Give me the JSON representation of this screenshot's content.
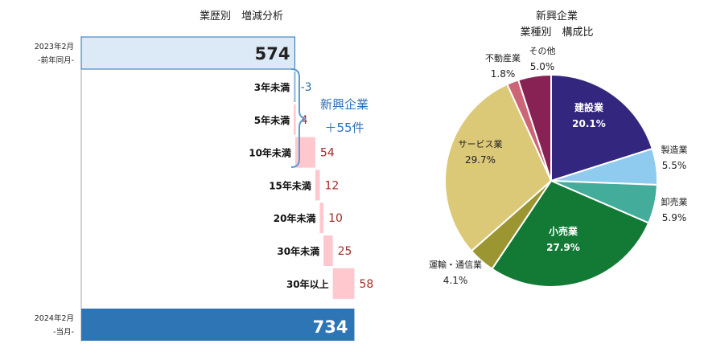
{
  "chart_data": [
    {
      "type": "bar",
      "title": "業歴別　増減分析",
      "start": {
        "value": 574,
        "label_line1": "2023年2月",
        "label_line2": "-前年同月-",
        "value_text": "574"
      },
      "categories": [
        "3年未満",
        "5年未満",
        "10年未満",
        "15年未満",
        "20年未満",
        "30年未満",
        "30年以上"
      ],
      "values": [
        -3,
        4,
        54,
        12,
        10,
        25,
        58
      ],
      "value_labels": [
        "-3",
        "4",
        "54",
        "12",
        "10",
        "25",
        "58"
      ],
      "end": {
        "value": 734,
        "label_line1": "2024年2月",
        "label_line2": "-当月-",
        "value_text": "734"
      },
      "annotation": {
        "line1": "新興企業",
        "line2": "＋55件"
      },
      "colors": {
        "start": "#dce9f6",
        "start_border": "#2e6eb5",
        "neg": "#9dc3e6",
        "pos": "#ffc7ce",
        "end": "#2e75b6",
        "neg_text": "#2e6eb5",
        "pos_text": "#a52a2a",
        "brace": "#5b9bd5"
      }
    },
    {
      "type": "pie",
      "title_line1": "新興企業",
      "title_line2": "業種別　構成比",
      "slices": [
        {
          "name": "建設業",
          "value": 20.1,
          "label": "20.1%",
          "color": "#33267f"
        },
        {
          "name": "製造業",
          "value": 5.5,
          "label": "5.5%",
          "color": "#8ecbee"
        },
        {
          "name": "卸売業",
          "value": 5.9,
          "label": "5.9%",
          "color": "#44ac9a"
        },
        {
          "name": "小売業",
          "value": 27.9,
          "label": "27.9%",
          "color": "#127a35"
        },
        {
          "name": "運輸・通信業",
          "value": 4.1,
          "label": "4.1%",
          "color": "#9b9632"
        },
        {
          "name": "サービス業",
          "value": 29.7,
          "label": "29.7%",
          "color": "#dbc978"
        },
        {
          "name": "不動産業",
          "value": 1.8,
          "label": "1.8%",
          "color": "#cc6677"
        },
        {
          "name": "その他",
          "value": 5.0,
          "label": "5.0%",
          "color": "#882255"
        }
      ]
    }
  ]
}
